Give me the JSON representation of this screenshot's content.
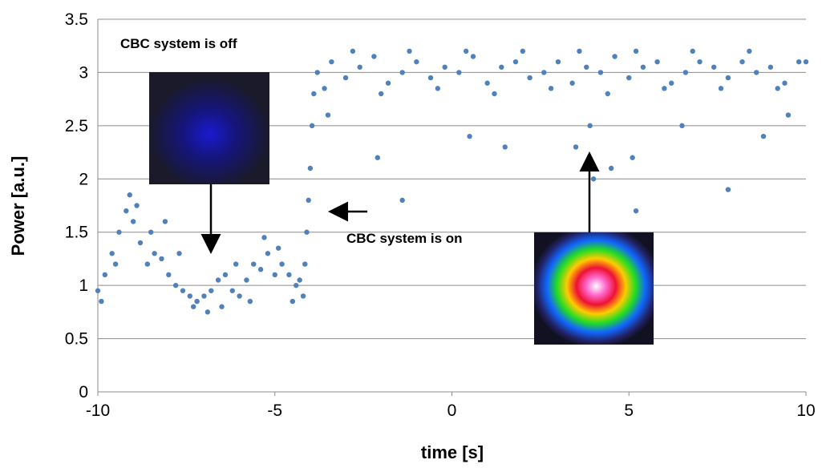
{
  "chart_data": {
    "type": "scatter",
    "x_label": "time [s]",
    "y_label": "Power [a.u.]",
    "annotations": [
      "CBC system is off",
      "CBC system is on"
    ],
    "xlim": [
      -10,
      10
    ],
    "xticks": [
      -10,
      -5,
      0,
      5,
      10
    ],
    "ylim": [
      0,
      3.5
    ],
    "yticks": [
      0,
      0.5,
      1,
      1.5,
      2,
      2.5,
      3,
      3.5
    ],
    "grid": true,
    "series": [
      {
        "color": "#4f81bd",
        "x": [
          -10,
          -9.8,
          -9.6,
          -9.4,
          -9.2,
          -9.0,
          -8.8,
          -8.6,
          -8.4,
          -8.2,
          -8.0,
          -7.8,
          -7.6,
          -7.4,
          -7.2,
          -7.0,
          -6.8,
          -6.6,
          -6.4,
          -6.2,
          -6.0,
          -5.8,
          -5.6,
          -5.4,
          -5.2,
          -5.0,
          -4.8,
          -4.6,
          -4.4,
          -4.2,
          -9.9,
          -9.5,
          -9.1,
          -8.9,
          -8.5,
          -8.1,
          -7.7,
          -7.3,
          -6.9,
          -6.5,
          -6.1,
          -5.7,
          -5.3,
          -4.9,
          -4.5,
          -4.3,
          -4.15,
          -4.1,
          -4.05,
          -4.0,
          -3.95,
          -3.9,
          -3.8,
          -3.4,
          -3.0,
          -2.6,
          -2.2,
          -1.8,
          -1.4,
          -1.0,
          -0.6,
          -0.2,
          0.2,
          0.6,
          1.0,
          1.4,
          1.8,
          2.2,
          2.6,
          3.0,
          3.4,
          3.8,
          4.2,
          4.6,
          5.0,
          5.4,
          5.8,
          6.2,
          6.6,
          7.0,
          7.4,
          7.8,
          8.2,
          8.6,
          9.0,
          9.4,
          9.8,
          -3.6,
          -2.8,
          -2.0,
          -1.2,
          -0.4,
          0.4,
          1.2,
          2.0,
          2.8,
          3.6,
          4.4,
          5.2,
          6.0,
          6.8,
          7.6,
          8.4,
          9.2,
          10.0,
          -3.5,
          -2.1,
          -1.4,
          0.5,
          1.5,
          3.5,
          4.0,
          4.5,
          5.2,
          5.1,
          6.5,
          7.8,
          8.8,
          9.5,
          3.9
        ],
        "values": [
          0.95,
          1.1,
          1.3,
          1.5,
          1.7,
          1.6,
          1.4,
          1.2,
          1.3,
          1.25,
          1.1,
          1.0,
          0.95,
          0.9,
          0.85,
          0.9,
          0.95,
          1.05,
          1.1,
          0.95,
          0.9,
          1.05,
          1.2,
          1.15,
          1.3,
          1.1,
          1.2,
          1.1,
          1.0,
          0.9,
          0.85,
          1.2,
          1.85,
          1.75,
          1.5,
          1.6,
          1.3,
          0.8,
          0.75,
          0.8,
          1.2,
          0.85,
          1.45,
          1.35,
          0.85,
          1.05,
          1.2,
          1.5,
          1.8,
          2.1,
          2.5,
          2.8,
          3.0,
          3.1,
          2.95,
          3.05,
          3.15,
          2.9,
          3.0,
          3.1,
          2.95,
          3.05,
          3.0,
          3.15,
          2.9,
          3.05,
          3.1,
          2.95,
          3.0,
          3.1,
          2.9,
          3.05,
          3.0,
          3.15,
          2.95,
          3.05,
          3.1,
          2.9,
          3.0,
          3.1,
          3.05,
          2.95,
          3.1,
          3.0,
          3.05,
          2.9,
          3.1,
          2.85,
          3.2,
          2.8,
          3.2,
          2.85,
          3.2,
          2.8,
          3.2,
          2.85,
          3.2,
          2.8,
          3.2,
          2.85,
          3.2,
          2.85,
          3.2,
          2.85,
          3.1,
          2.6,
          2.2,
          1.8,
          2.4,
          2.3,
          2.3,
          2.0,
          2.1,
          1.7,
          2.2,
          2.5,
          1.9,
          2.4,
          2.6,
          2.5
        ]
      }
    ]
  }
}
